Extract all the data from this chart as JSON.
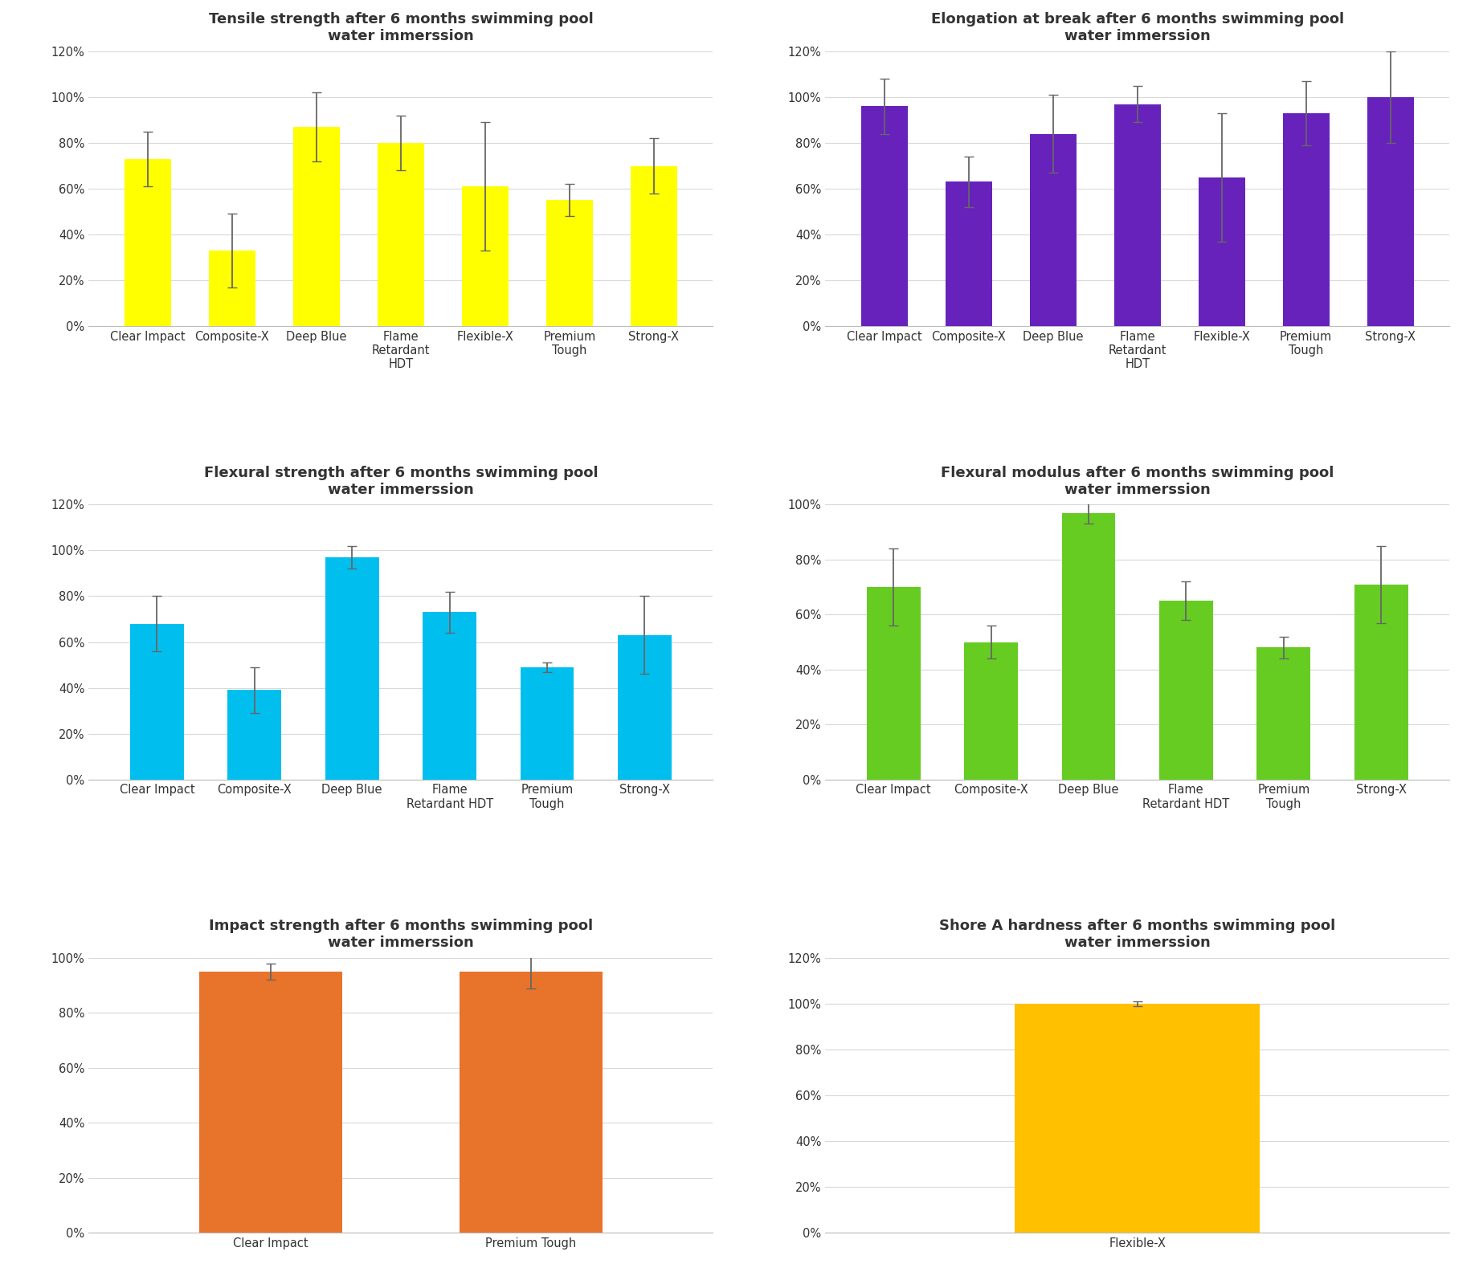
{
  "tensile": {
    "title": "Tensile strength after 6 months swimming pool\nwater immerssion",
    "categories": [
      "Clear Impact",
      "Composite-X",
      "Deep Blue",
      "Flame\nRetardant\nHDT",
      "Flexible-X",
      "Premium\nTough",
      "Strong-X"
    ],
    "values": [
      0.73,
      0.33,
      0.87,
      0.8,
      0.61,
      0.55,
      0.7
    ],
    "errors": [
      0.12,
      0.16,
      0.15,
      0.12,
      0.28,
      0.07,
      0.12
    ],
    "color": "#FFFF00",
    "ylim": [
      0,
      1.2
    ],
    "yticks": [
      0,
      0.2,
      0.4,
      0.6,
      0.8,
      1.0,
      1.2
    ]
  },
  "elongation": {
    "title": "Elongation at break after 6 months swimming pool\nwater immerssion",
    "categories": [
      "Clear Impact",
      "Composite-X",
      "Deep Blue",
      "Flame\nRetardant\nHDT",
      "Flexible-X",
      "Premium\nTough",
      "Strong-X"
    ],
    "values": [
      0.96,
      0.63,
      0.84,
      0.97,
      0.65,
      0.93,
      1.0
    ],
    "errors": [
      0.12,
      0.11,
      0.17,
      0.08,
      0.28,
      0.14,
      0.2
    ],
    "color": "#6622BB",
    "ylim": [
      0,
      1.2
    ],
    "yticks": [
      0,
      0.2,
      0.4,
      0.6,
      0.8,
      1.0,
      1.2
    ]
  },
  "flexural_strength": {
    "title": "Flexural strength after 6 months swimming pool\nwater immerssion",
    "categories": [
      "Clear Impact",
      "Composite-X",
      "Deep Blue",
      "Flame\nRetardant HDT",
      "Premium\nTough",
      "Strong-X"
    ],
    "values": [
      0.68,
      0.39,
      0.97,
      0.73,
      0.49,
      0.63
    ],
    "errors": [
      0.12,
      0.1,
      0.05,
      0.09,
      0.02,
      0.17
    ],
    "color": "#00BFEF",
    "ylim": [
      0,
      1.2
    ],
    "yticks": [
      0,
      0.2,
      0.4,
      0.6,
      0.8,
      1.0,
      1.2
    ]
  },
  "flexural_modulus": {
    "title": "Flexural modulus after 6 months swimming pool\nwater immerssion",
    "categories": [
      "Clear Impact",
      "Composite-X",
      "Deep Blue",
      "Flame\nRetardant HDT",
      "Premium\nTough",
      "Strong-X"
    ],
    "values": [
      0.7,
      0.5,
      0.97,
      0.65,
      0.48,
      0.71
    ],
    "errors": [
      0.14,
      0.06,
      0.04,
      0.07,
      0.04,
      0.14
    ],
    "color": "#66CC22",
    "ylim": [
      0,
      1.0
    ],
    "yticks": [
      0,
      0.2,
      0.4,
      0.6,
      0.8,
      1.0
    ]
  },
  "impact": {
    "title": "Impact strength after 6 months swimming pool\nwater immerssion",
    "categories": [
      "Clear Impact",
      "Premium Tough"
    ],
    "values": [
      0.95,
      0.95
    ],
    "errors": [
      0.03,
      0.06
    ],
    "color": "#E8732A",
    "ylim": [
      0,
      1.0
    ],
    "yticks": [
      0,
      0.2,
      0.4,
      0.6,
      0.8,
      1.0
    ]
  },
  "shore_a": {
    "title": "Shore A hardness after 6 months swimming pool\nwater immerssion",
    "categories": [
      "Flexible-X"
    ],
    "values": [
      1.0
    ],
    "errors": [
      0.012
    ],
    "color": "#FFC000",
    "ylim": [
      0,
      1.2
    ],
    "yticks": [
      0,
      0.2,
      0.4,
      0.6,
      0.8,
      1.0,
      1.2
    ]
  },
  "background_color": "#FFFFFF",
  "grid_color": "#D8D8D8",
  "title_fontsize": 13,
  "tick_fontsize": 10.5,
  "bar_width": 0.55
}
